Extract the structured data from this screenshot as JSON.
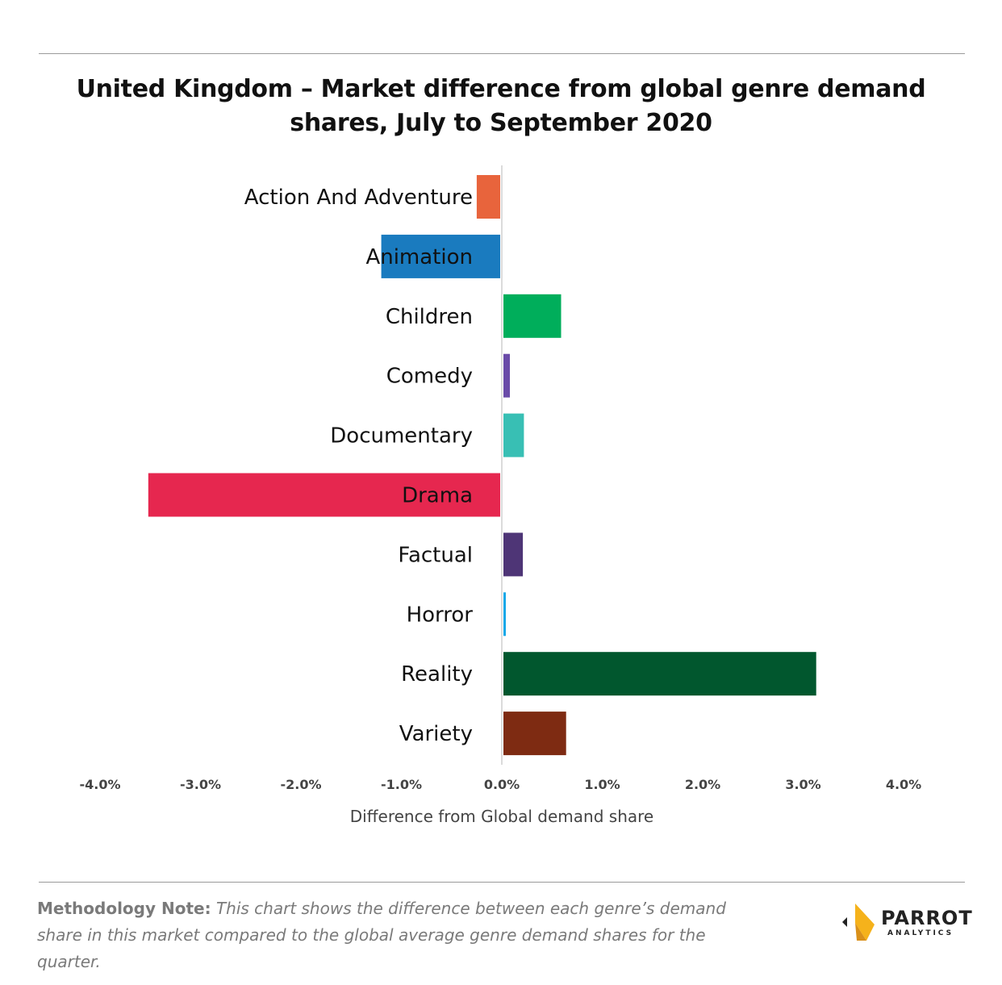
{
  "title": "United Kingdom – Market difference from global genre demand shares, July to September 2020",
  "chart_data": {
    "type": "bar",
    "orientation": "horizontal",
    "categories": [
      "Action And Adventure",
      "Animation",
      "Children",
      "Comedy",
      "Documentary",
      "Drama",
      "Factual",
      "Horror",
      "Reality",
      "Variety"
    ],
    "values": [
      -0.25,
      -1.2,
      0.59,
      0.08,
      0.22,
      -3.52,
      0.21,
      0.04,
      3.13,
      0.64
    ],
    "colors": [
      "#E8643C",
      "#1A7BBF",
      "#00AE5B",
      "#6A4BA8",
      "#38BFB4",
      "#E6274F",
      "#4E3576",
      "#13A8E8",
      "#01572E",
      "#7E2B12"
    ],
    "xlabel": "Difference from Global demand share",
    "ylabel": "",
    "xlim": [
      -4.0,
      4.0
    ],
    "xticks": [
      -4.0,
      -3.0,
      -2.0,
      -1.0,
      0.0,
      1.0,
      2.0,
      3.0,
      4.0
    ],
    "xtick_labels": [
      "-4.0%",
      "-3.0%",
      "-2.0%",
      "-1.0%",
      "0.0%",
      "1.0%",
      "2.0%",
      "3.0%",
      "4.0%"
    ],
    "grid": false,
    "legend": "none"
  },
  "methodology": {
    "lead": "Methodology Note:",
    "text": "This chart shows the difference between each genre’s demand share in this market compared to the global average genre demand shares for the quarter."
  },
  "logo": {
    "name": "PARROT",
    "subtitle": "ANALYTICS"
  }
}
